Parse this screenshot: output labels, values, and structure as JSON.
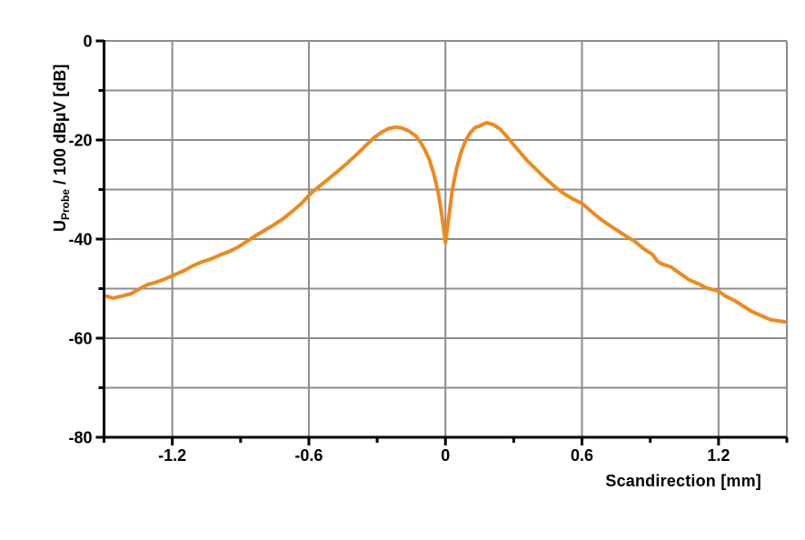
{
  "figure": {
    "background": "#FFFFFF",
    "plot_border_color": "#8C8C8C",
    "axis_color": "#000000"
  },
  "chart_data": {
    "type": "line",
    "title": "",
    "xlabel": "Scandirection [mm]",
    "ylabel": "U_Probe / 100 dBuV [dB]",
    "ylabel_parts": {
      "pre": "U",
      "sub": "Probe",
      "post": " / 100 dBµV [dB]"
    },
    "xlim": [
      -1.5,
      1.5
    ],
    "ylim": [
      -80,
      0
    ],
    "x_major_ticks": [
      -1.2,
      -0.6,
      0,
      0.6,
      1.2
    ],
    "x_major_labels": [
      "-1.2",
      "-0.6",
      "0",
      "0.6",
      "1.2"
    ],
    "x_minor_step": 0.3,
    "y_major_ticks": [
      0,
      -20,
      -40,
      -60,
      -80
    ],
    "y_major_labels": [
      "0",
      "-20",
      "-40",
      "-60",
      "-80"
    ],
    "y_minor_step": 10,
    "grid": true,
    "legend": "none",
    "grid_color": "#8C8C8C",
    "line_color": "#ED8A1E",
    "line_width": 4,
    "series": [
      {
        "name": "probe-voltage",
        "x": [
          -1.49,
          -1.46,
          -1.42,
          -1.38,
          -1.35,
          -1.31,
          -1.27,
          -1.23,
          -1.19,
          -1.15,
          -1.11,
          -1.07,
          -1.03,
          -0.99,
          -0.95,
          -0.91,
          -0.87,
          -0.83,
          -0.79,
          -0.75,
          -0.71,
          -0.67,
          -0.63,
          -0.59,
          -0.55,
          -0.51,
          -0.47,
          -0.43,
          -0.39,
          -0.35,
          -0.31,
          -0.28,
          -0.25,
          -0.22,
          -0.19,
          -0.16,
          -0.13,
          -0.11,
          -0.09,
          -0.07,
          -0.05,
          -0.03,
          -0.015,
          0,
          0.015,
          0.03,
          0.05,
          0.07,
          0.09,
          0.11,
          0.13,
          0.15,
          0.18,
          0.21,
          0.24,
          0.27,
          0.3,
          0.33,
          0.36,
          0.4,
          0.44,
          0.48,
          0.52,
          0.56,
          0.6,
          0.64,
          0.68,
          0.72,
          0.76,
          0.8,
          0.83,
          0.87,
          0.91,
          0.93,
          0.95,
          0.99,
          1.03,
          1.07,
          1.11,
          1.15,
          1.2,
          1.23,
          1.27,
          1.31,
          1.35,
          1.39,
          1.43,
          1.46,
          1.49
        ],
        "y": [
          -51.5,
          -51.9,
          -51.5,
          -51.0,
          -50.2,
          -49.2,
          -48.7,
          -48.0,
          -47.2,
          -46.4,
          -45.4,
          -44.6,
          -44.0,
          -43.2,
          -42.5,
          -41.6,
          -40.4,
          -39.2,
          -38.1,
          -37.0,
          -35.8,
          -34.3,
          -32.7,
          -30.7,
          -29.2,
          -27.7,
          -26.2,
          -24.6,
          -22.9,
          -21.1,
          -19.4,
          -18.4,
          -17.7,
          -17.4,
          -17.6,
          -18.2,
          -19.2,
          -20.4,
          -22.0,
          -24.0,
          -27.0,
          -31.0,
          -35.5,
          -40.7,
          -35.5,
          -30.0,
          -25.5,
          -22.3,
          -20.0,
          -18.5,
          -17.5,
          -17.2,
          -16.5,
          -16.9,
          -17.8,
          -19.3,
          -21.0,
          -22.6,
          -24.2,
          -26.0,
          -27.8,
          -29.4,
          -30.8,
          -31.9,
          -32.8,
          -34.4,
          -35.9,
          -37.2,
          -38.4,
          -39.6,
          -40.4,
          -41.9,
          -43.1,
          -44.4,
          -45.0,
          -45.6,
          -46.9,
          -48.2,
          -49.0,
          -49.9,
          -50.5,
          -51.5,
          -52.4,
          -53.6,
          -54.7,
          -55.5,
          -56.3,
          -56.5,
          -56.7
        ]
      }
    ]
  }
}
